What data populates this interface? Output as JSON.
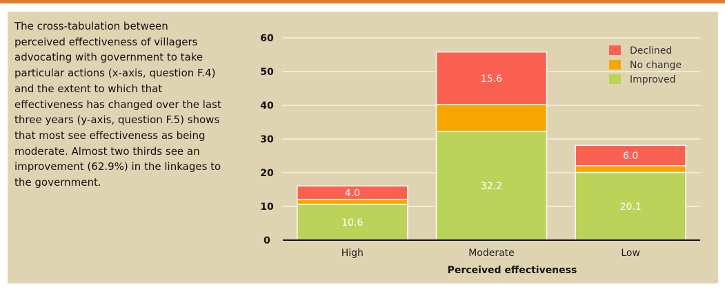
{
  "caption": "The cross-tabulation between perceived effectiveness of villagers advocating with government to take particular actions (x-axis, question F.4) and the extent to which that effectiveness has changed over the last three years (y-axis, question F.5) shows that most see effectiveness as being moderate. Almost two thirds see an improvement (62.9%) in the linkages to the government.",
  "chart_data": {
    "type": "bar",
    "stacked": true,
    "categories": [
      "High",
      "Moderate",
      "Low"
    ],
    "series": [
      {
        "name": "Improved",
        "values": [
          10.6,
          32.2,
          20.1
        ],
        "labels": [
          "10.6",
          "32.2",
          "20.1"
        ],
        "color": "#bcd35a"
      },
      {
        "name": "No change",
        "values": [
          1.5,
          8.0,
          2.0
        ],
        "labels": [
          "",
          "",
          ""
        ],
        "color": "#f7a500"
      },
      {
        "name": "Declined",
        "values": [
          4.0,
          15.6,
          6.0
        ],
        "labels": [
          "4.0",
          "15.6",
          "6.0"
        ],
        "color": "#fb6150"
      }
    ],
    "legend_order": [
      "Declined",
      "No change",
      "Improved"
    ],
    "legend_position": "top-right",
    "xlabel": "Perceived effectiveness",
    "ylabel": "",
    "ylim": [
      0,
      60
    ],
    "yticks": [
      0,
      10,
      20,
      30,
      40,
      50,
      60
    ],
    "grid": true,
    "colors": {
      "grid": "#ffffff",
      "axis": "#111111",
      "bar_edge": "#ffffff"
    }
  }
}
